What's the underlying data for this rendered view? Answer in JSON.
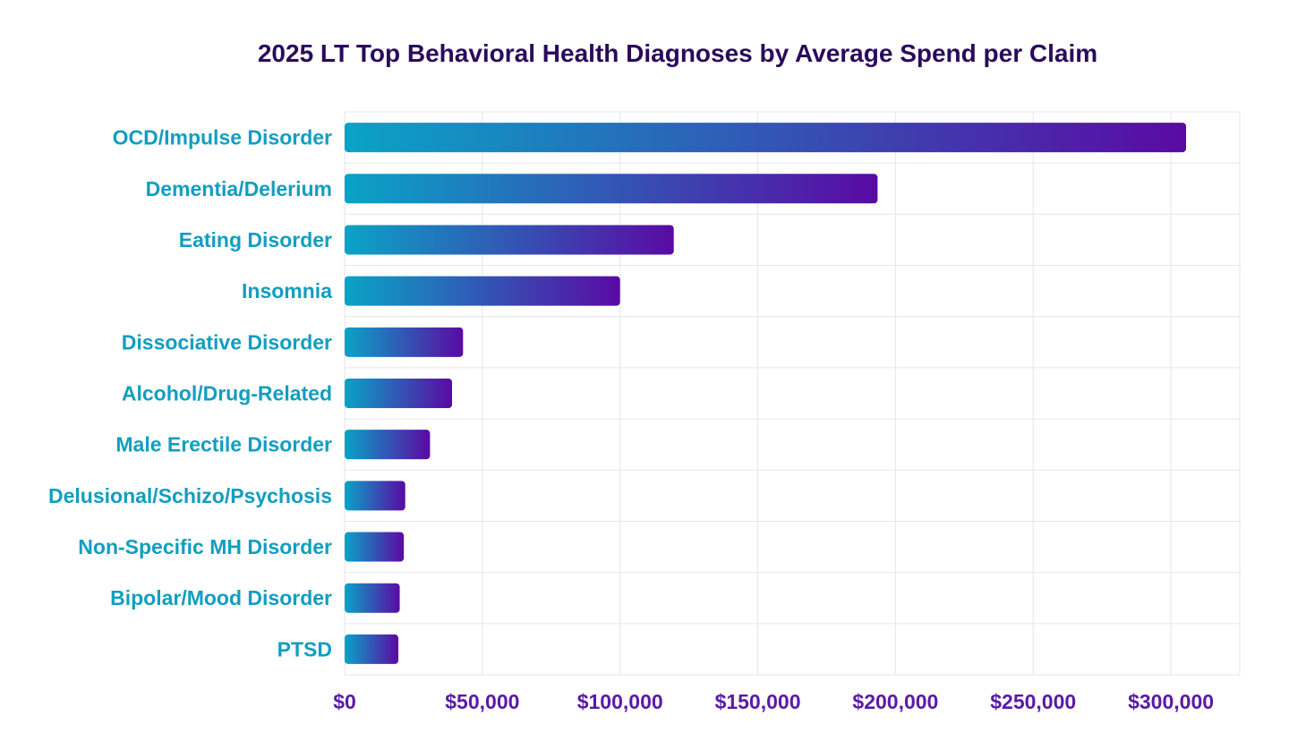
{
  "chart_data": {
    "type": "bar",
    "orientation": "horizontal",
    "title": "2025 LT Top  Behavioral Health Diagnoses by Average Spend per Claim",
    "xlabel": "",
    "ylabel": "",
    "categories": [
      "OCD/Impulse Disorder",
      "Dementia/Delerium",
      "Eating Disorder",
      "Insomnia",
      "Dissociative Disorder",
      "Alcohol/Drug-Related",
      "Male Erectile Disorder",
      "Delusional/Schizo/Psychosis",
      "Non-Specific MH Disorder",
      "Bipolar/Mood Disorder",
      "PTSD"
    ],
    "values": [
      305500,
      193500,
      119500,
      100000,
      43000,
      39000,
      31000,
      22000,
      21500,
      20000,
      19500
    ],
    "xlim": [
      0,
      325000
    ],
    "xticks": [
      0,
      50000,
      100000,
      150000,
      200000,
      250000,
      300000
    ],
    "xtick_labels": [
      "$0",
      "$50,000",
      "$100,000",
      "$150,000",
      "$200,000",
      "$250,000",
      "$300,000"
    ],
    "grid": true,
    "legend": "none",
    "colors": {
      "bar_gradient_start": "#0aa3c6",
      "bar_gradient_end": "#5a0aa3",
      "title": "#2b0a5c",
      "category_labels": "#129ec0",
      "tick_labels": "#5a1aa6",
      "grid": "#e6e6ea"
    }
  }
}
